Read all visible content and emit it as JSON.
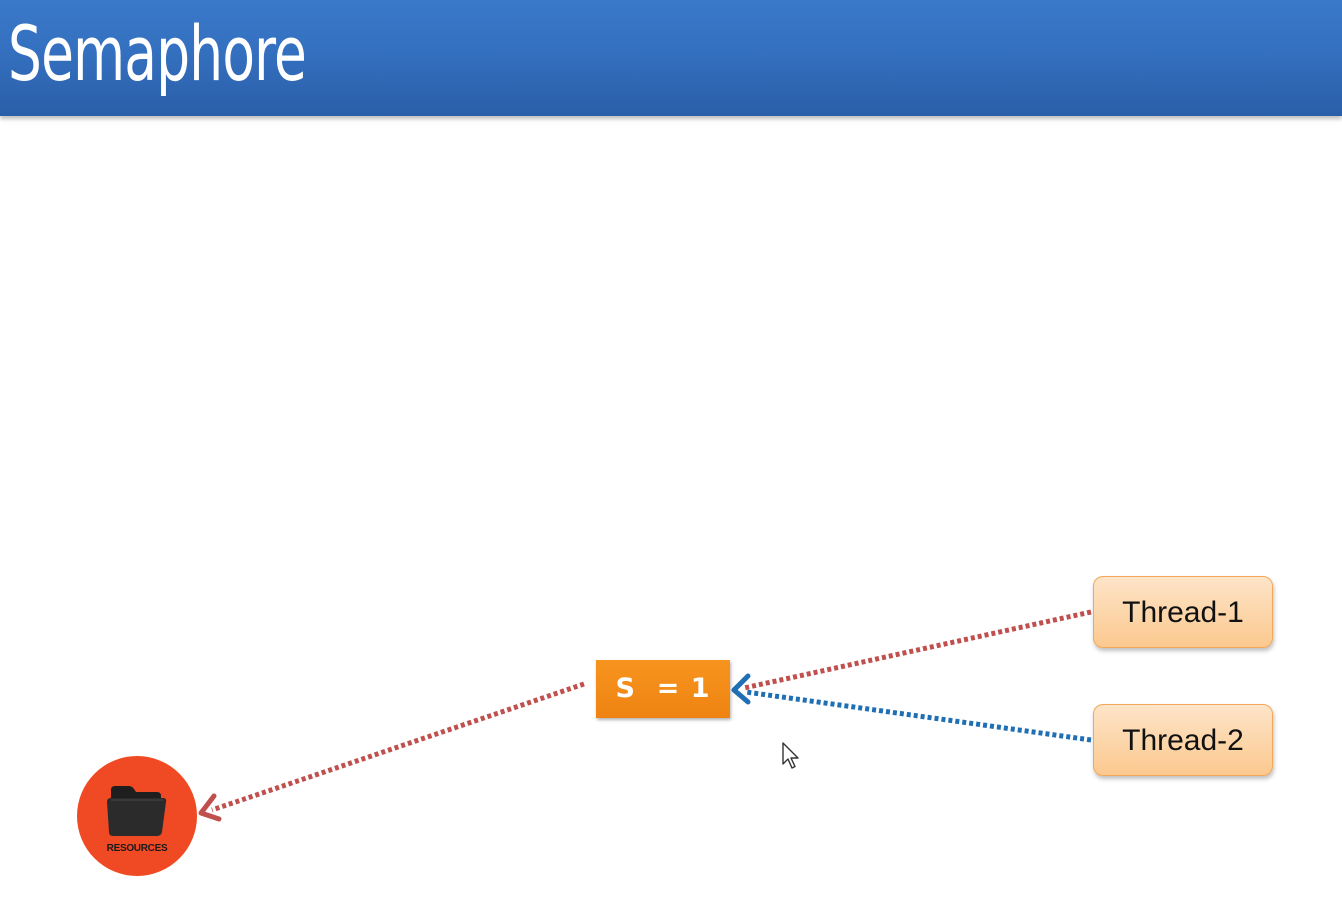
{
  "header": {
    "title": "Semaphore"
  },
  "diagram": {
    "semaphore": {
      "label": "S  = 1"
    },
    "threads": [
      {
        "label": "Thread-1",
        "arrow_color": "#c0504d"
      },
      {
        "label": "Thread-2",
        "arrow_color": "#1f6fb5"
      }
    ],
    "resource": {
      "label": "RESOURCES",
      "color": "#f04a24",
      "icon": "folder-icon"
    },
    "colors": {
      "header": "#3470bf",
      "semaphore_box": "#f7941e",
      "thread_box": "#fcd3a4"
    }
  }
}
